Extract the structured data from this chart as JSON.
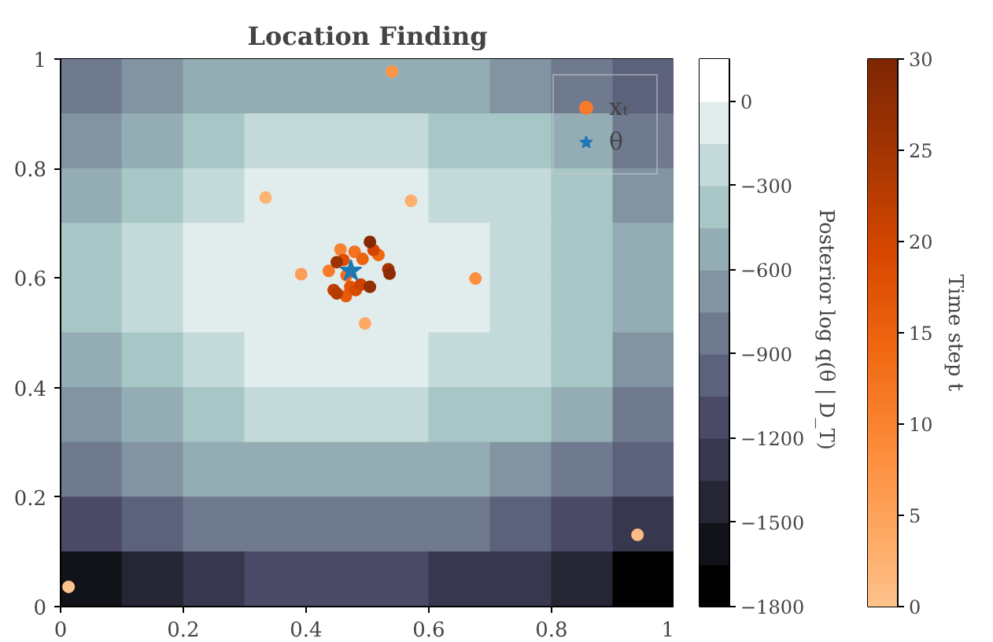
{
  "chart_data": [
    {
      "type": "scatter",
      "title": "Location Finding",
      "xlim": [
        0,
        1
      ],
      "ylim": [
        0,
        1
      ],
      "xticks": [
        0,
        0.2,
        0.4,
        0.6,
        0.8,
        1
      ],
      "yticks": [
        0,
        0.2,
        0.4,
        0.6,
        0.8,
        1
      ],
      "legend": "top right",
      "clim": [
        0,
        30
      ],
      "cticks": [
        0,
        5,
        10,
        15,
        20,
        25,
        30
      ],
      "clabel": "Time step t",
      "series": [
        {
          "name": "xₜ",
          "type": "scatter",
          "marker": "circle",
          "x": [
            0.013,
            0.94,
            0.334,
            0.571,
            0.496,
            0.392,
            0.54,
            0.676,
            0.456,
            0.437,
            0.479,
            0.466,
            0.518,
            0.492,
            0.465,
            0.472,
            0.461,
            0.481,
            0.51,
            0.489,
            0.445,
            0.45,
            0.534,
            0.45,
            0.504,
            0.536,
            0.504
          ],
          "values": [
            0.036,
            0.131,
            0.747,
            0.741,
            0.517,
            0.607,
            0.977,
            0.599,
            0.652,
            0.613,
            0.648,
            0.605,
            0.642,
            0.635,
            0.567,
            0.584,
            0.633,
            0.578,
            0.651,
            0.588,
            0.578,
            0.572,
            0.616,
            0.629,
            0.584,
            0.608,
            0.666
          ],
          "cvalues": [
            0,
            1,
            2,
            3,
            4,
            6,
            7,
            8,
            10,
            11,
            12,
            13,
            14,
            15,
            16,
            17,
            18,
            19,
            20,
            21,
            22,
            23,
            25,
            26,
            27,
            28,
            29
          ],
          "colors": [
            "#fdc28c",
            "#fdbc83",
            "#fdb574",
            "#fdaf6c",
            "#fda964",
            "#fd9e56",
            "#fd964a",
            "#fd9040",
            "#fa8132",
            "#f77a2a",
            "#f47321",
            "#f26d18",
            "#f16913",
            "#ec630f",
            "#e85b0b",
            "#e35507",
            "#df4f04",
            "#da4901",
            "#d54601",
            "#cc4302",
            "#c03f02",
            "#b63b02",
            "#a43503",
            "#9c3303",
            "#942f03",
            "#8e2d04",
            "#862904"
          ]
        },
        {
          "name": "θ",
          "type": "scatter",
          "marker": "star",
          "color": "#1f77b4",
          "x": [
            0.473
          ],
          "values": [
            0.613
          ]
        }
      ]
    },
    {
      "type": "heatmap",
      "xlim": [
        0,
        1
      ],
      "ylim": [
        0,
        1
      ],
      "tick_labels": false,
      "clim": [
        -1800,
        150
      ],
      "cticks": [
        0,
        -300,
        -600,
        -900,
        -1200,
        -1500,
        -1800
      ],
      "clabel": "Posterior  log q(θ | D_T)",
      "cells": [
        [
          -880,
          -700,
          -580,
          -490,
          -460,
          -470,
          -540,
          -650,
          -810,
          -1010
        ],
        [
          -660,
          -480,
          -350,
          -270,
          -240,
          -250,
          -310,
          -420,
          -580,
          -790
        ],
        [
          -510,
          -330,
          -200,
          -120,
          -90,
          -100,
          -160,
          -270,
          -430,
          -640
        ],
        [
          -430,
          -260,
          -130,
          -40,
          -10,
          -20,
          -90,
          -200,
          -360,
          -560
        ],
        [
          -430,
          -260,
          -130,
          -40,
          -10,
          -20,
          -90,
          -200,
          -360,
          -560
        ],
        [
          -510,
          -330,
          -200,
          -120,
          -90,
          -100,
          -160,
          -270,
          -430,
          -640
        ],
        [
          -660,
          -480,
          -350,
          -270,
          -240,
          -250,
          -310,
          -420,
          -580,
          -790
        ],
        [
          -880,
          -700,
          -580,
          -490,
          -460,
          -470,
          -540,
          -650,
          -810,
          -1010
        ],
        [
          -1180,
          -1010,
          -880,
          -790,
          -760,
          -770,
          -840,
          -950,
          -1110,
          -1310
        ],
        [
          -1560,
          -1380,
          -1250,
          -1170,
          -1140,
          -1150,
          -1210,
          -1320,
          -1480,
          -1690
        ]
      ]
    }
  ]
}
